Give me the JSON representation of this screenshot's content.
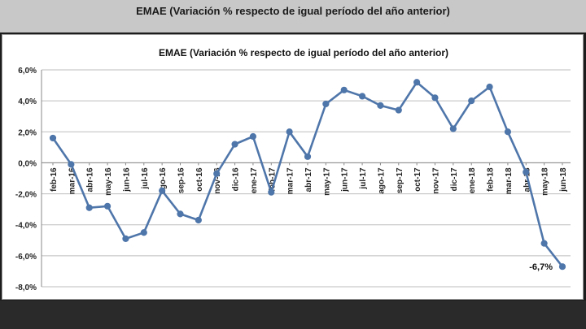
{
  "page": {
    "header_title": "EMAE (Variación % respecto de igual período del año anterior)"
  },
  "chart_data": {
    "type": "line",
    "title": "EMAE (Variación % respecto de igual período del año anterior)",
    "xlabel": "",
    "ylabel": "",
    "ylim": [
      -8,
      6
    ],
    "yticks": [
      "6,0%",
      "4,0%",
      "2,0%",
      "0,0%",
      "-2,0%",
      "-4,0%",
      "-6,0%",
      "-8,0%"
    ],
    "grid": "horizontal",
    "line_color": "#4f76aa",
    "categories": [
      "feb-16",
      "mar-16",
      "abr-16",
      "may-16",
      "jun-16",
      "jul-16",
      "ago-16",
      "sep-16",
      "oct-16",
      "nov-16",
      "dic-16",
      "ene-17",
      "feb-17",
      "mar-17",
      "abr-17",
      "may-17",
      "jun-17",
      "jul-17",
      "ago-17",
      "sep-17",
      "oct-17",
      "nov-17",
      "dic-17",
      "ene-18",
      "feb-18",
      "mar-18",
      "abr-18",
      "may-18",
      "jun-18"
    ],
    "values": [
      1.6,
      -0.1,
      -2.9,
      -2.8,
      -4.9,
      -4.5,
      -1.8,
      -3.3,
      -3.7,
      -0.7,
      1.2,
      1.7,
      -1.9,
      2.0,
      0.4,
      3.8,
      4.7,
      4.3,
      3.7,
      3.4,
      5.2,
      4.2,
      2.2,
      4.0,
      4.9,
      2.0,
      -0.6,
      -5.2,
      -6.7
    ],
    "annotation": {
      "text": "-6,7%",
      "index": 28
    }
  }
}
